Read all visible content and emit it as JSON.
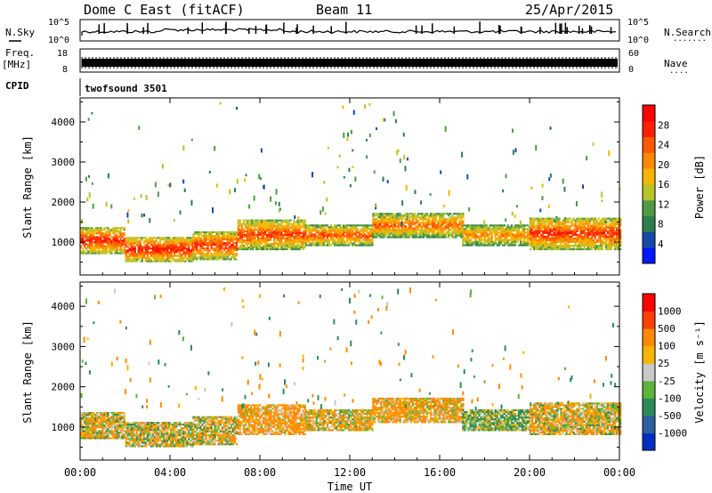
{
  "header": {
    "title": "Dome C East (fitACF)",
    "beam": "Beam 11",
    "date": "25/Apr/2015"
  },
  "noise_panel": {
    "left_label": "N.Sky",
    "left_ticks": [
      "10^5",
      "10^0"
    ],
    "right_ticks": [
      "10^5",
      "10^0"
    ],
    "right_label": "N.Search",
    "right_dots": "......."
  },
  "freq_panel": {
    "left_label_1": "Freq.",
    "left_label_2": "[MHz]",
    "left_ticks": [
      "18",
      "8"
    ],
    "right_ticks": [
      "60",
      "0"
    ],
    "right_label": "Nave",
    "right_dots": "...."
  },
  "cpid_panel": {
    "label": "CPID",
    "text": "twofsound 3501"
  },
  "power_panel": {
    "ylabel": "Slant Range [km]",
    "yticks": [
      "4000",
      "3000",
      "2000",
      "1000"
    ],
    "colorbar_label": "Power [dB]",
    "colorbar_ticks": [
      "28",
      "24",
      "20",
      "16",
      "12",
      "8",
      "4"
    ],
    "colors": [
      "#0018ff",
      "#1747a8",
      "#2e7d4f",
      "#4e9a45",
      "#b6c42a",
      "#f7b500",
      "#ff8a00",
      "#ff5a00",
      "#ff2000",
      "#ff0000"
    ]
  },
  "velocity_panel": {
    "ylabel": "Slant Range [km]",
    "yticks": [
      "4000",
      "3000",
      "2000",
      "1000"
    ],
    "colorbar_label": "Velocity [m s⁻¹]",
    "colorbar_ticks": [
      "1000",
      "500",
      "100",
      "25",
      "-25",
      "-100",
      "-500",
      "-1000"
    ],
    "colors": [
      "#0030c0",
      "#2f5f9e",
      "#2e8a5a",
      "#5ab53a",
      "#c8c8c8",
      "#f7b500",
      "#ff8a00",
      "#ff4000",
      "#ff0000"
    ]
  },
  "xaxis": {
    "label": "Time UT",
    "ticks": [
      "00:00",
      "04:00",
      "08:00",
      "12:00",
      "16:00",
      "20:00",
      "00:00"
    ]
  },
  "chart_data": {
    "type": "heatmap",
    "title": "Dome C East (fitACF)",
    "subtitle": "Beam 11 25/Apr/2015",
    "x_range": [
      "00:00",
      "24:00"
    ],
    "y_range_km": [
      180,
      4600
    ],
    "xlabel": "Time UT",
    "ylabel": "Slant Range [km]",
    "power_scale_db": [
      0,
      32
    ],
    "velocity_scale_ms": [
      -1000,
      1000
    ],
    "echo_bands": [
      {
        "hours": [
          0,
          2
        ],
        "range_km": [
          700,
          1350
        ],
        "power_db": 28,
        "velocity_ms": -50
      },
      {
        "hours": [
          2,
          5
        ],
        "range_km": [
          500,
          1100
        ],
        "power_db": 29,
        "velocity_ms": -20
      },
      {
        "hours": [
          5,
          7
        ],
        "range_km": [
          550,
          1250
        ],
        "power_db": 27,
        "velocity_ms": -40
      },
      {
        "hours": [
          7,
          10
        ],
        "range_km": [
          800,
          1550
        ],
        "power_db": 26,
        "velocity_ms": -150
      },
      {
        "hours": [
          10,
          13
        ],
        "range_km": [
          900,
          1400
        ],
        "power_db": 25,
        "velocity_ms": -80
      },
      {
        "hours": [
          13,
          17
        ],
        "range_km": [
          1100,
          1700
        ],
        "power_db": 24,
        "velocity_ms": -120
      },
      {
        "hours": [
          17,
          20
        ],
        "range_km": [
          900,
          1400
        ],
        "power_db": 22,
        "velocity_ms": 80
      },
      {
        "hours": [
          20,
          24
        ],
        "range_km": [
          800,
          1600
        ],
        "power_db": 27,
        "velocity_ms": -60
      }
    ]
  }
}
